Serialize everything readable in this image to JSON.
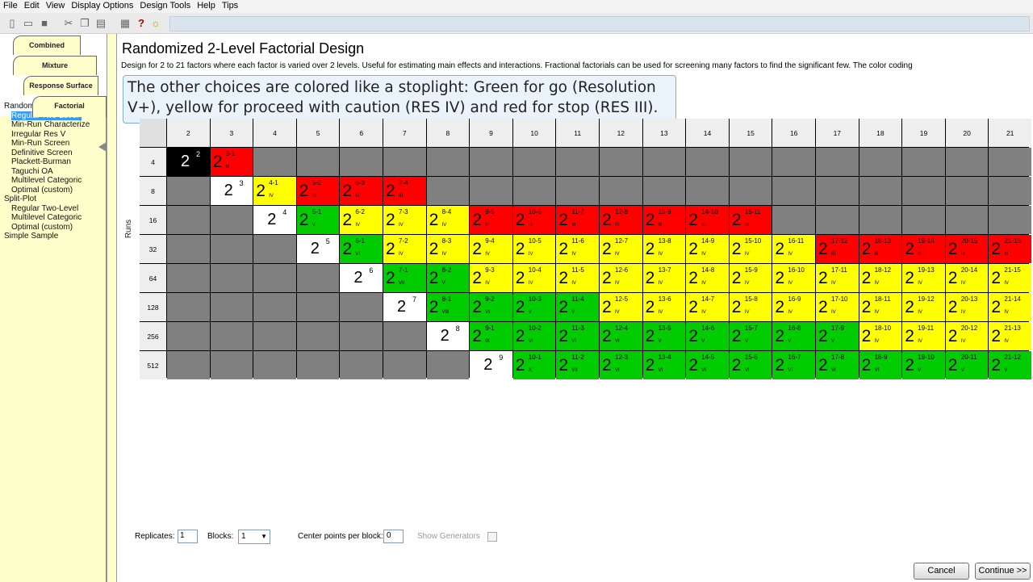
{
  "menu": [
    "File",
    "Edit",
    "View",
    "Display Options",
    "Design Tools",
    "Help",
    "Tips"
  ],
  "toolbar": {
    "icons": [
      "new-icon",
      "open-icon",
      "save-icon",
      "cut-icon",
      "copy-icon",
      "paste-icon",
      "print-icon",
      "help-icon",
      "tip-icon"
    ]
  },
  "tabs": [
    "Combined",
    "Mixture",
    "Response Surface",
    "Factorial"
  ],
  "tree": [
    {
      "label": "Randomized",
      "indent": false,
      "selected": false
    },
    {
      "label": "Regular Two-Level",
      "indent": true,
      "selected": true
    },
    {
      "label": "Min-Run Characterize",
      "indent": true,
      "selected": false
    },
    {
      "label": "Irregular Res V",
      "indent": true,
      "selected": false
    },
    {
      "label": "Min-Run Screen",
      "indent": true,
      "selected": false
    },
    {
      "label": "Definitive Screen",
      "indent": true,
      "selected": false
    },
    {
      "label": "Plackett-Burman",
      "indent": true,
      "selected": false
    },
    {
      "label": "Taguchi OA",
      "indent": true,
      "selected": false
    },
    {
      "label": "Multilevel Categoric",
      "indent": true,
      "selected": false
    },
    {
      "label": "Optimal (custom)",
      "indent": true,
      "selected": false
    },
    {
      "label": "Split-Plot",
      "indent": false,
      "selected": false
    },
    {
      "label": "Regular Two-Level",
      "indent": true,
      "selected": false
    },
    {
      "label": "Multilevel Categoric",
      "indent": true,
      "selected": false
    },
    {
      "label": "Optimal (custom)",
      "indent": true,
      "selected": false
    },
    {
      "label": "Simple Sample",
      "indent": false,
      "selected": false
    }
  ],
  "main": {
    "title": "Randomized 2-Level Factorial Design",
    "description": "Design for 2 to 21 factors where each factor is varied over 2 levels.  Useful for estimating main effects and interactions.  Fractional factorials can be used for screening many factors to find the significant few. The color coding",
    "tooltip": "The other choices are colored like a stoplight: Green for go (Resolution V+), yellow for proceed with caution (RES IV) and red for stop (RES III).",
    "runs_label": "Runs"
  },
  "table": {
    "factors": [
      "2",
      "3",
      "4",
      "5",
      "6",
      "7",
      "8",
      "9",
      "10",
      "11",
      "12",
      "13",
      "14",
      "15",
      "16",
      "17",
      "18",
      "19",
      "20",
      "21"
    ],
    "runs": [
      "4",
      "8",
      "16",
      "32",
      "64",
      "128",
      "256",
      "512"
    ],
    "colors": {
      "R": "#ff0000",
      "Y": "#ffff00",
      "G": "#00cc00",
      "W": "#ffffff",
      "K": "#000000",
      "X": "#808080"
    },
    "rows": [
      [
        {
          "c": "K",
          "sup": "2"
        },
        {
          "c": "R",
          "sup": "3-1",
          "res": "III"
        },
        {
          "c": "X"
        },
        {
          "c": "X"
        },
        {
          "c": "X"
        },
        {
          "c": "X"
        },
        {
          "c": "X"
        },
        {
          "c": "X"
        },
        {
          "c": "X"
        },
        {
          "c": "X"
        },
        {
          "c": "X"
        },
        {
          "c": "X"
        },
        {
          "c": "X"
        },
        {
          "c": "X"
        },
        {
          "c": "X"
        },
        {
          "c": "X"
        },
        {
          "c": "X"
        },
        {
          "c": "X"
        },
        {
          "c": "X"
        },
        {
          "c": "X"
        }
      ],
      [
        {
          "c": "X"
        },
        {
          "c": "W",
          "sup": "3"
        },
        {
          "c": "Y",
          "sup": "4-1",
          "res": "IV"
        },
        {
          "c": "R",
          "sup": "5-2",
          "res": "III"
        },
        {
          "c": "R",
          "sup": "6-3",
          "res": "III"
        },
        {
          "c": "R",
          "sup": "7-4",
          "res": "III"
        },
        {
          "c": "X"
        },
        {
          "c": "X"
        },
        {
          "c": "X"
        },
        {
          "c": "X"
        },
        {
          "c": "X"
        },
        {
          "c": "X"
        },
        {
          "c": "X"
        },
        {
          "c": "X"
        },
        {
          "c": "X"
        },
        {
          "c": "X"
        },
        {
          "c": "X"
        },
        {
          "c": "X"
        },
        {
          "c": "X"
        },
        {
          "c": "X"
        }
      ],
      [
        {
          "c": "X"
        },
        {
          "c": "X"
        },
        {
          "c": "W",
          "sup": "4"
        },
        {
          "c": "G",
          "sup": "5-1",
          "res": "V"
        },
        {
          "c": "Y",
          "sup": "6-2",
          "res": "IV"
        },
        {
          "c": "Y",
          "sup": "7-3",
          "res": "IV"
        },
        {
          "c": "Y",
          "sup": "8-4",
          "res": "IV"
        },
        {
          "c": "R",
          "sup": "9-5",
          "res": "III"
        },
        {
          "c": "R",
          "sup": "10-6",
          "res": "III"
        },
        {
          "c": "R",
          "sup": "11-7",
          "res": "III"
        },
        {
          "c": "R",
          "sup": "12-8",
          "res": "III"
        },
        {
          "c": "R",
          "sup": "13-9",
          "res": "III"
        },
        {
          "c": "R",
          "sup": "14-10",
          "res": "III"
        },
        {
          "c": "R",
          "sup": "15-11",
          "res": "III"
        },
        {
          "c": "X"
        },
        {
          "c": "X"
        },
        {
          "c": "X"
        },
        {
          "c": "X"
        },
        {
          "c": "X"
        },
        {
          "c": "X"
        }
      ],
      [
        {
          "c": "X"
        },
        {
          "c": "X"
        },
        {
          "c": "X"
        },
        {
          "c": "W",
          "sup": "5"
        },
        {
          "c": "G",
          "sup": "6-1",
          "res": "VI"
        },
        {
          "c": "Y",
          "sup": "7-2",
          "res": "IV"
        },
        {
          "c": "Y",
          "sup": "8-3",
          "res": "IV"
        },
        {
          "c": "Y",
          "sup": "9-4",
          "res": "IV"
        },
        {
          "c": "Y",
          "sup": "10-5",
          "res": "IV"
        },
        {
          "c": "Y",
          "sup": "11-6",
          "res": "IV"
        },
        {
          "c": "Y",
          "sup": "12-7",
          "res": "IV"
        },
        {
          "c": "Y",
          "sup": "13-8",
          "res": "IV"
        },
        {
          "c": "Y",
          "sup": "14-9",
          "res": "IV"
        },
        {
          "c": "Y",
          "sup": "15-10",
          "res": "IV"
        },
        {
          "c": "Y",
          "sup": "16-11",
          "res": "IV"
        },
        {
          "c": "R",
          "sup": "17-12",
          "res": "III"
        },
        {
          "c": "R",
          "sup": "18-13",
          "res": "III"
        },
        {
          "c": "R",
          "sup": "19-14",
          "res": "III"
        },
        {
          "c": "R",
          "sup": "20-15",
          "res": "III"
        },
        {
          "c": "R",
          "sup": "21-16",
          "res": "III"
        }
      ],
      [
        {
          "c": "X"
        },
        {
          "c": "X"
        },
        {
          "c": "X"
        },
        {
          "c": "X"
        },
        {
          "c": "W",
          "sup": "6"
        },
        {
          "c": "G",
          "sup": "7-1",
          "res": "VII"
        },
        {
          "c": "G",
          "sup": "8-2",
          "res": "V"
        },
        {
          "c": "Y",
          "sup": "9-3",
          "res": "IV"
        },
        {
          "c": "Y",
          "sup": "10-4",
          "res": "IV"
        },
        {
          "c": "Y",
          "sup": "11-5",
          "res": "IV"
        },
        {
          "c": "Y",
          "sup": "12-6",
          "res": "IV"
        },
        {
          "c": "Y",
          "sup": "13-7",
          "res": "IV"
        },
        {
          "c": "Y",
          "sup": "14-8",
          "res": "IV"
        },
        {
          "c": "Y",
          "sup": "15-9",
          "res": "IV"
        },
        {
          "c": "Y",
          "sup": "16-10",
          "res": "IV"
        },
        {
          "c": "Y",
          "sup": "17-11",
          "res": "IV"
        },
        {
          "c": "Y",
          "sup": "18-12",
          "res": "IV"
        },
        {
          "c": "Y",
          "sup": "19-13",
          "res": "IV"
        },
        {
          "c": "Y",
          "sup": "20-14",
          "res": "IV"
        },
        {
          "c": "Y",
          "sup": "21-15",
          "res": "IV"
        }
      ],
      [
        {
          "c": "X"
        },
        {
          "c": "X"
        },
        {
          "c": "X"
        },
        {
          "c": "X"
        },
        {
          "c": "X"
        },
        {
          "c": "W",
          "sup": "7"
        },
        {
          "c": "G",
          "sup": "8-1",
          "res": "VIII"
        },
        {
          "c": "G",
          "sup": "9-2",
          "res": "VI"
        },
        {
          "c": "G",
          "sup": "10-3",
          "res": "V"
        },
        {
          "c": "G",
          "sup": "11-4",
          "res": "V"
        },
        {
          "c": "Y",
          "sup": "12-5",
          "res": "IV"
        },
        {
          "c": "Y",
          "sup": "13-6",
          "res": "IV"
        },
        {
          "c": "Y",
          "sup": "14-7",
          "res": "IV"
        },
        {
          "c": "Y",
          "sup": "15-8",
          "res": "IV"
        },
        {
          "c": "Y",
          "sup": "16-9",
          "res": "IV"
        },
        {
          "c": "Y",
          "sup": "17-10",
          "res": "IV"
        },
        {
          "c": "Y",
          "sup": "18-11",
          "res": "IV"
        },
        {
          "c": "Y",
          "sup": "19-12",
          "res": "IV"
        },
        {
          "c": "Y",
          "sup": "20-13",
          "res": "IV"
        },
        {
          "c": "Y",
          "sup": "21-14",
          "res": "IV"
        }
      ],
      [
        {
          "c": "X"
        },
        {
          "c": "X"
        },
        {
          "c": "X"
        },
        {
          "c": "X"
        },
        {
          "c": "X"
        },
        {
          "c": "X"
        },
        {
          "c": "W",
          "sup": "8"
        },
        {
          "c": "G",
          "sup": "9-1",
          "res": "IX"
        },
        {
          "c": "G",
          "sup": "10-2",
          "res": "VI"
        },
        {
          "c": "G",
          "sup": "11-3",
          "res": "VI"
        },
        {
          "c": "G",
          "sup": "12-4",
          "res": "VI"
        },
        {
          "c": "G",
          "sup": "13-5",
          "res": "V"
        },
        {
          "c": "G",
          "sup": "14-6",
          "res": "V"
        },
        {
          "c": "G",
          "sup": "15-7",
          "res": "V"
        },
        {
          "c": "G",
          "sup": "16-8",
          "res": "V"
        },
        {
          "c": "G",
          "sup": "17-9",
          "res": "V"
        },
        {
          "c": "Y",
          "sup": "18-10",
          "res": "IV"
        },
        {
          "c": "Y",
          "sup": "19-11",
          "res": "IV"
        },
        {
          "c": "Y",
          "sup": "20-12",
          "res": "IV"
        },
        {
          "c": "Y",
          "sup": "21-13",
          "res": "IV"
        }
      ],
      [
        {
          "c": "X"
        },
        {
          "c": "X"
        },
        {
          "c": "X"
        },
        {
          "c": "X"
        },
        {
          "c": "X"
        },
        {
          "c": "X"
        },
        {
          "c": "X"
        },
        {
          "c": "W",
          "sup": "9"
        },
        {
          "c": "G",
          "sup": "10-1",
          "res": "X"
        },
        {
          "c": "G",
          "sup": "11-2",
          "res": "VII"
        },
        {
          "c": "G",
          "sup": "12-3",
          "res": "VI"
        },
        {
          "c": "G",
          "sup": "13-4",
          "res": "VI"
        },
        {
          "c": "G",
          "sup": "14-5",
          "res": "VI"
        },
        {
          "c": "G",
          "sup": "15-6",
          "res": "VI"
        },
        {
          "c": "G",
          "sup": "16-7",
          "res": "VI"
        },
        {
          "c": "G",
          "sup": "17-8",
          "res": "VI"
        },
        {
          "c": "G",
          "sup": "18-9",
          "res": "VI"
        },
        {
          "c": "G",
          "sup": "19-10",
          "res": "V"
        },
        {
          "c": "G",
          "sup": "20-11",
          "res": "V"
        },
        {
          "c": "G",
          "sup": "21-12",
          "res": "V"
        }
      ]
    ]
  },
  "footer": {
    "replicates_label": "Replicates:",
    "replicates_value": "1",
    "blocks_label": "Blocks:",
    "blocks_value": "1",
    "center_points_label": "Center points per block:",
    "center_points_value": "0",
    "show_generators_label": "Show Generators",
    "show_generators_checked": false,
    "cancel_label": "Cancel",
    "continue_label": "Continue >>"
  }
}
